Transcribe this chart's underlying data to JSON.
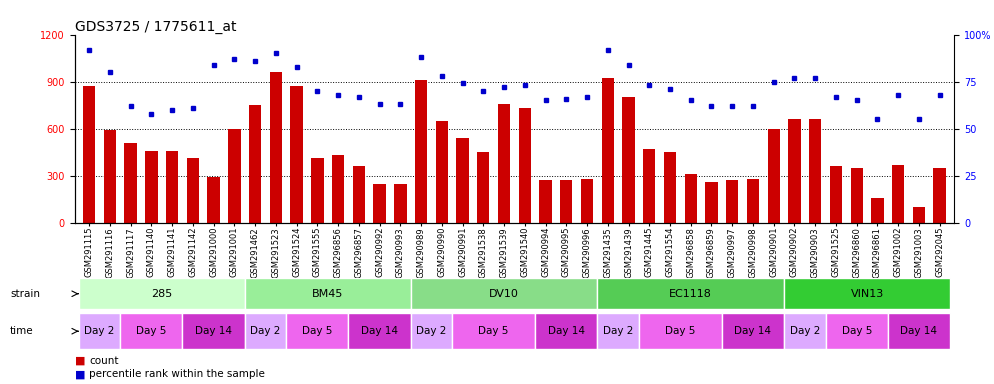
{
  "title": "GDS3725 / 1775611_at",
  "xlabels": [
    "GSM291115",
    "GSM291116",
    "GSM291117",
    "GSM291140",
    "GSM291141",
    "GSM291142",
    "GSM291000",
    "GSM291001",
    "GSM291462",
    "GSM291523",
    "GSM291524",
    "GSM291555",
    "GSM296856",
    "GSM296857",
    "GSM290992",
    "GSM290993",
    "GSM290989",
    "GSM290990",
    "GSM290991",
    "GSM291538",
    "GSM291539",
    "GSM291540",
    "GSM290994",
    "GSM290995",
    "GSM290996",
    "GSM291435",
    "GSM291439",
    "GSM291445",
    "GSM291554",
    "GSM296858",
    "GSM296859",
    "GSM290997",
    "GSM290998",
    "GSM290901",
    "GSM290902",
    "GSM290903",
    "GSM291525",
    "GSM296860",
    "GSM296861",
    "GSM291002",
    "GSM291003",
    "GSM292045"
  ],
  "bar_values": [
    870,
    590,
    510,
    460,
    460,
    410,
    290,
    600,
    750,
    960,
    870,
    410,
    430,
    360,
    250,
    250,
    910,
    650,
    540,
    450,
    760,
    730,
    270,
    270,
    280,
    920,
    800,
    470,
    450,
    310,
    260,
    270,
    280,
    600,
    660,
    660,
    360,
    350,
    160,
    370,
    100,
    350
  ],
  "dot_values": [
    92,
    80,
    62,
    58,
    60,
    61,
    84,
    87,
    86,
    90,
    83,
    70,
    68,
    67,
    63,
    63,
    88,
    78,
    74,
    70,
    72,
    73,
    65,
    66,
    67,
    92,
    84,
    73,
    71,
    65,
    62,
    62,
    62,
    75,
    77,
    77,
    67,
    65,
    55,
    68,
    55,
    68
  ],
  "strain_data": [
    {
      "label": "285",
      "start": 0,
      "end": 7,
      "color": "#ccffcc"
    },
    {
      "label": "BM45",
      "start": 8,
      "end": 15,
      "color": "#99ee99"
    },
    {
      "label": "DV10",
      "start": 16,
      "end": 24,
      "color": "#88dd88"
    },
    {
      "label": "EC1118",
      "start": 25,
      "end": 33,
      "color": "#55cc55"
    },
    {
      "label": "VIN13",
      "start": 34,
      "end": 41,
      "color": "#33cc33"
    }
  ],
  "time_data": [
    {
      "label": "Day 2",
      "start": 0,
      "end": 1,
      "color": "#ddaaff"
    },
    {
      "label": "Day 5",
      "start": 2,
      "end": 4,
      "color": "#ee66ee"
    },
    {
      "label": "Day 14",
      "start": 5,
      "end": 7,
      "color": "#cc33cc"
    },
    {
      "label": "Day 2",
      "start": 8,
      "end": 9,
      "color": "#ddaaff"
    },
    {
      "label": "Day 5",
      "start": 10,
      "end": 12,
      "color": "#ee66ee"
    },
    {
      "label": "Day 14",
      "start": 13,
      "end": 15,
      "color": "#cc33cc"
    },
    {
      "label": "Day 2",
      "start": 16,
      "end": 17,
      "color": "#ddaaff"
    },
    {
      "label": "Day 5",
      "start": 18,
      "end": 21,
      "color": "#ee66ee"
    },
    {
      "label": "Day 14",
      "start": 22,
      "end": 24,
      "color": "#cc33cc"
    },
    {
      "label": "Day 2",
      "start": 25,
      "end": 26,
      "color": "#ddaaff"
    },
    {
      "label": "Day 5",
      "start": 27,
      "end": 30,
      "color": "#ee66ee"
    },
    {
      "label": "Day 14",
      "start": 31,
      "end": 33,
      "color": "#cc33cc"
    },
    {
      "label": "Day 2",
      "start": 34,
      "end": 35,
      "color": "#ddaaff"
    },
    {
      "label": "Day 5",
      "start": 36,
      "end": 38,
      "color": "#ee66ee"
    },
    {
      "label": "Day 14",
      "start": 39,
      "end": 41,
      "color": "#cc33cc"
    }
  ],
  "bar_color": "#cc0000",
  "dot_color": "#0000cc",
  "ylim_left": [
    0,
    1200
  ],
  "ylim_right": [
    0,
    100
  ],
  "yticks_left": [
    0,
    300,
    600,
    900,
    1200
  ],
  "yticks_right": [
    0,
    25,
    50,
    75,
    100
  ],
  "background_color": "#ffffff",
  "title_fontsize": 10,
  "tick_fontsize": 6
}
